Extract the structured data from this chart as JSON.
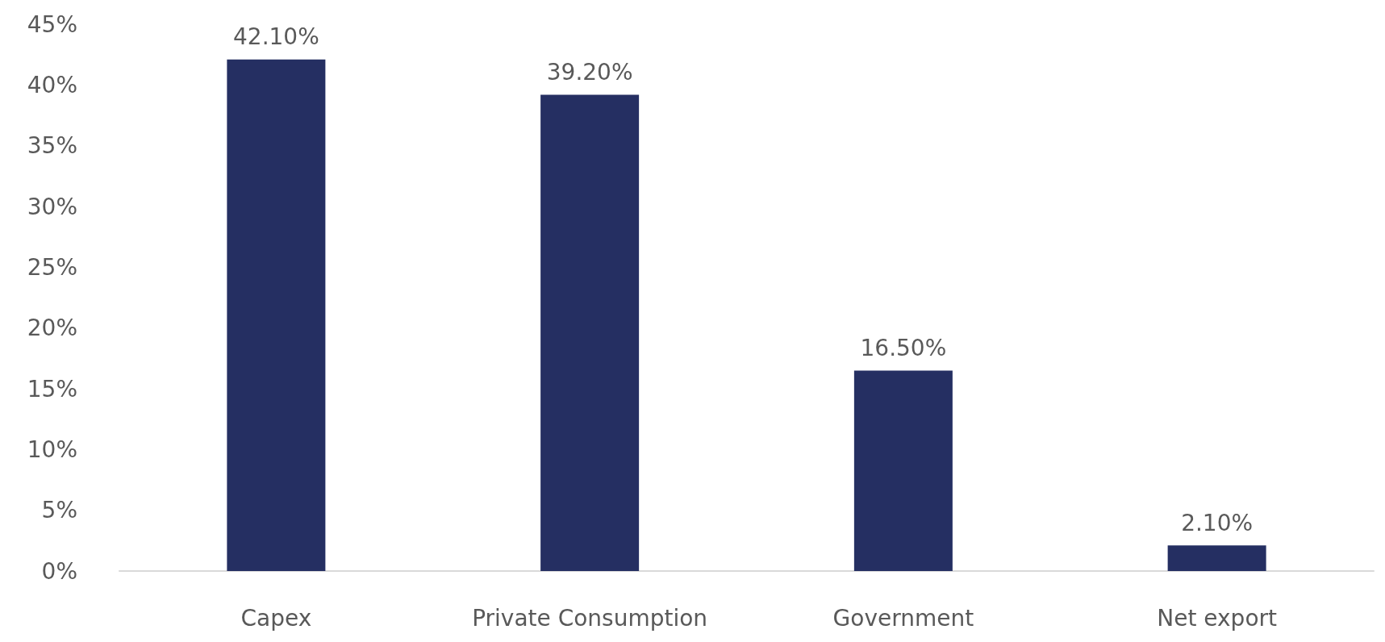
{
  "chart_data": {
    "type": "bar",
    "categories": [
      "Capex",
      "Private Consumption",
      "Government",
      "Net export"
    ],
    "values": [
      42.1,
      39.2,
      16.5,
      2.1
    ],
    "color": "#252f62",
    "value_labels": [
      "42.10%",
      "39.20%",
      "16.50%",
      "2.10%"
    ],
    "ylim": [
      0,
      45
    ],
    "yticks": [
      {
        "value": 0,
        "label": "0%"
      },
      {
        "value": 5,
        "label": "5%"
      },
      {
        "value": 10,
        "label": "10%"
      },
      {
        "value": 15,
        "label": "15%"
      },
      {
        "value": 20,
        "label": "20%"
      },
      {
        "value": 25,
        "label": "25%"
      },
      {
        "value": 30,
        "label": "30%"
      },
      {
        "value": 35,
        "label": "35%"
      },
      {
        "value": 40,
        "label": "40%"
      },
      {
        "value": 45,
        "label": "45%"
      }
    ],
    "grid": false
  }
}
